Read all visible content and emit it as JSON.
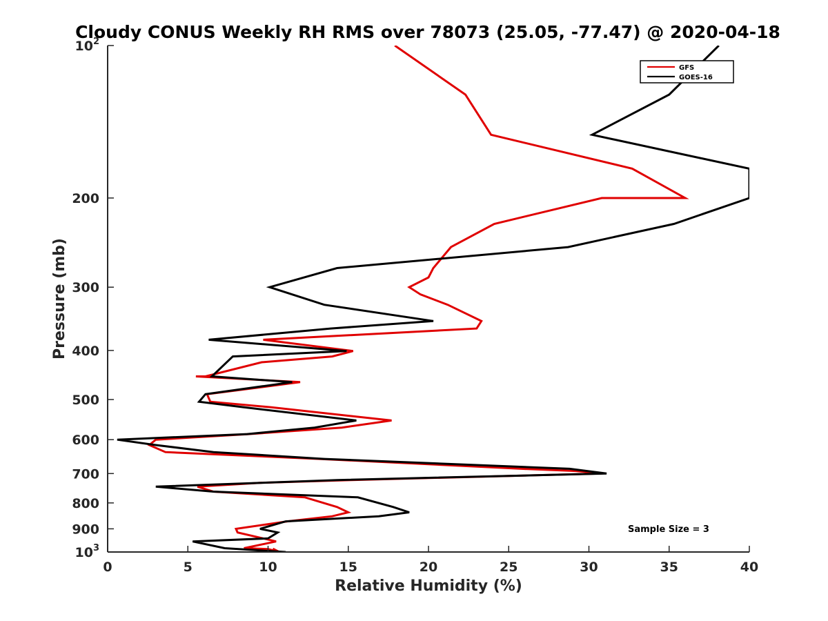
{
  "chart_data": {
    "type": "line",
    "title": "Cloudy CONUS Weekly RH RMS over 78073 (25.05, -77.47) @ 2020-04-18",
    "xlabel": "Relative Humidity (%)",
    "ylabel": "Pressure (mb)",
    "xlim": [
      0,
      40
    ],
    "ylim": [
      100,
      1000
    ],
    "y_scale": "log",
    "y_reversed": true,
    "grid": false,
    "legend_position": "top-right",
    "x_ticks": [
      {
        "value": 0,
        "label": "0"
      },
      {
        "value": 5,
        "label": "5"
      },
      {
        "value": 10,
        "label": "10"
      },
      {
        "value": 15,
        "label": "15"
      },
      {
        "value": 20,
        "label": "20"
      },
      {
        "value": 25,
        "label": "25"
      },
      {
        "value": 30,
        "label": "30"
      },
      {
        "value": 35,
        "label": "35"
      },
      {
        "value": 40,
        "label": "40"
      }
    ],
    "y_ticks": [
      {
        "value": 100,
        "label": "10",
        "exp": "2"
      },
      {
        "value": 200,
        "label": "200",
        "exp": ""
      },
      {
        "value": 300,
        "label": "300",
        "exp": ""
      },
      {
        "value": 400,
        "label": "400",
        "exp": ""
      },
      {
        "value": 500,
        "label": "500",
        "exp": ""
      },
      {
        "value": 600,
        "label": "600",
        "exp": ""
      },
      {
        "value": 700,
        "label": "700",
        "exp": ""
      },
      {
        "value": 800,
        "label": "800",
        "exp": ""
      },
      {
        "value": 900,
        "label": "900",
        "exp": ""
      },
      {
        "value": 1000,
        "label": "10",
        "exp": "3"
      }
    ],
    "series": [
      {
        "name": "GFS",
        "color": "#e00000",
        "points": [
          [
            17.9,
            100
          ],
          [
            22.3,
            125
          ],
          [
            23.9,
            150
          ],
          [
            32.7,
            175
          ],
          [
            36.0,
            200
          ],
          [
            30.8,
            200
          ],
          [
            24.1,
            225
          ],
          [
            21.4,
            250
          ],
          [
            20.3,
            275
          ],
          [
            20.0,
            287
          ],
          [
            18.8,
            300
          ],
          [
            19.5,
            310
          ],
          [
            21.2,
            325
          ],
          [
            23.3,
            350
          ],
          [
            23.0,
            362
          ],
          [
            9.7,
            381
          ],
          [
            15.3,
            401
          ],
          [
            14.0,
            411
          ],
          [
            9.6,
            422
          ],
          [
            6.1,
            450
          ],
          [
            5.5,
            450
          ],
          [
            12.0,
            462
          ],
          [
            6.2,
            488
          ],
          [
            6.4,
            505
          ],
          [
            10.2,
            518
          ],
          [
            17.7,
            550
          ],
          [
            14.6,
            568
          ],
          [
            8.8,
            585
          ],
          [
            3.0,
            600
          ],
          [
            2.6,
            615
          ],
          [
            3.6,
            635
          ],
          [
            13.2,
            655
          ],
          [
            25.8,
            685
          ],
          [
            29.2,
            692
          ],
          [
            30.8,
            700
          ],
          [
            15.2,
            721
          ],
          [
            9.5,
            730
          ],
          [
            5.6,
            743
          ],
          [
            6.6,
            760
          ],
          [
            12.3,
            780
          ],
          [
            14.3,
            815
          ],
          [
            15.0,
            835
          ],
          [
            14.0,
            850
          ],
          [
            11.2,
            870
          ],
          [
            8.0,
            900
          ],
          [
            8.1,
            915
          ],
          [
            9.7,
            940
          ],
          [
            10.5,
            953
          ],
          [
            8.5,
            983
          ],
          [
            10.0,
            987
          ],
          [
            10.7,
            1000
          ],
          [
            10.3,
            985
          ]
        ]
      },
      {
        "name": "GOES-16",
        "color": "#000000",
        "points": [
          [
            38.1,
            100
          ],
          [
            35.0,
            125
          ],
          [
            30.2,
            150
          ],
          [
            40.0,
            175
          ],
          [
            40.0,
            200
          ],
          [
            35.3,
            225
          ],
          [
            28.7,
            250
          ],
          [
            14.3,
            275
          ],
          [
            10.1,
            300
          ],
          [
            13.5,
            325
          ],
          [
            20.3,
            350
          ],
          [
            13.9,
            362
          ],
          [
            6.3,
            381
          ],
          [
            14.9,
            401
          ],
          [
            7.8,
            411
          ],
          [
            6.5,
            450
          ],
          [
            11.5,
            462
          ],
          [
            6.1,
            488
          ],
          [
            5.7,
            505
          ],
          [
            8.5,
            518
          ],
          [
            15.5,
            550
          ],
          [
            12.9,
            568
          ],
          [
            8.7,
            585
          ],
          [
            0.6,
            600
          ],
          [
            3.0,
            615
          ],
          [
            6.6,
            635
          ],
          [
            13.5,
            655
          ],
          [
            28.8,
            685
          ],
          [
            31.1,
            700
          ],
          [
            14.3,
            721
          ],
          [
            3.0,
            743
          ],
          [
            6.6,
            760
          ],
          [
            15.6,
            780
          ],
          [
            17.8,
            815
          ],
          [
            18.8,
            835
          ],
          [
            16.9,
            850
          ],
          [
            11.1,
            870
          ],
          [
            9.5,
            900
          ],
          [
            10.6,
            915
          ],
          [
            10.0,
            940
          ],
          [
            5.3,
            953
          ],
          [
            7.3,
            983
          ],
          [
            11.1,
            1000
          ]
        ]
      }
    ],
    "annotation": "Sample Size = 3"
  }
}
